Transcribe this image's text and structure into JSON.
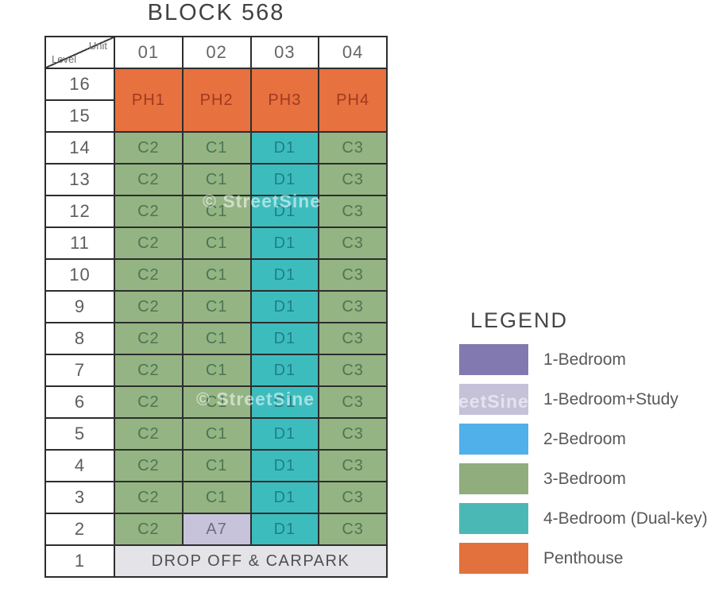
{
  "title": "BLOCK 568",
  "table": {
    "corner": {
      "top_label": "Unit",
      "side_label": "Level"
    },
    "columns": [
      "01",
      "02",
      "03",
      "04"
    ],
    "penthouse_band": {
      "levels": [
        "16",
        "15"
      ],
      "units": [
        {
          "label": "PH1",
          "type": "penthouse"
        },
        {
          "label": "PH2",
          "type": "penthouse"
        },
        {
          "label": "PH3",
          "type": "penthouse"
        },
        {
          "label": "PH4",
          "type": "penthouse"
        }
      ]
    },
    "rows": [
      {
        "level": "14",
        "units": [
          {
            "label": "C2",
            "type": "3br"
          },
          {
            "label": "C1",
            "type": "3br"
          },
          {
            "label": "D1",
            "type": "4br_dk"
          },
          {
            "label": "C3",
            "type": "3br"
          }
        ]
      },
      {
        "level": "13",
        "units": [
          {
            "label": "C2",
            "type": "3br"
          },
          {
            "label": "C1",
            "type": "3br"
          },
          {
            "label": "D1",
            "type": "4br_dk"
          },
          {
            "label": "C3",
            "type": "3br"
          }
        ]
      },
      {
        "level": "12",
        "units": [
          {
            "label": "C2",
            "type": "3br"
          },
          {
            "label": "C1",
            "type": "3br"
          },
          {
            "label": "D1",
            "type": "4br_dk"
          },
          {
            "label": "C3",
            "type": "3br"
          }
        ]
      },
      {
        "level": "11",
        "units": [
          {
            "label": "C2",
            "type": "3br"
          },
          {
            "label": "C1",
            "type": "3br"
          },
          {
            "label": "D1",
            "type": "4br_dk"
          },
          {
            "label": "C3",
            "type": "3br"
          }
        ]
      },
      {
        "level": "10",
        "units": [
          {
            "label": "C2",
            "type": "3br"
          },
          {
            "label": "C1",
            "type": "3br"
          },
          {
            "label": "D1",
            "type": "4br_dk"
          },
          {
            "label": "C3",
            "type": "3br"
          }
        ]
      },
      {
        "level": "9",
        "units": [
          {
            "label": "C2",
            "type": "3br"
          },
          {
            "label": "C1",
            "type": "3br"
          },
          {
            "label": "D1",
            "type": "4br_dk"
          },
          {
            "label": "C3",
            "type": "3br"
          }
        ]
      },
      {
        "level": "8",
        "units": [
          {
            "label": "C2",
            "type": "3br"
          },
          {
            "label": "C1",
            "type": "3br"
          },
          {
            "label": "D1",
            "type": "4br_dk"
          },
          {
            "label": "C3",
            "type": "3br"
          }
        ]
      },
      {
        "level": "7",
        "units": [
          {
            "label": "C2",
            "type": "3br"
          },
          {
            "label": "C1",
            "type": "3br"
          },
          {
            "label": "D1",
            "type": "4br_dk"
          },
          {
            "label": "C3",
            "type": "3br"
          }
        ]
      },
      {
        "level": "6",
        "units": [
          {
            "label": "C2",
            "type": "3br"
          },
          {
            "label": "C1",
            "type": "3br"
          },
          {
            "label": "D1",
            "type": "4br_dk"
          },
          {
            "label": "C3",
            "type": "3br"
          }
        ]
      },
      {
        "level": "5",
        "units": [
          {
            "label": "C2",
            "type": "3br"
          },
          {
            "label": "C1",
            "type": "3br"
          },
          {
            "label": "D1",
            "type": "4br_dk"
          },
          {
            "label": "C3",
            "type": "3br"
          }
        ]
      },
      {
        "level": "4",
        "units": [
          {
            "label": "C2",
            "type": "3br"
          },
          {
            "label": "C1",
            "type": "3br"
          },
          {
            "label": "D1",
            "type": "4br_dk"
          },
          {
            "label": "C3",
            "type": "3br"
          }
        ]
      },
      {
        "level": "3",
        "units": [
          {
            "label": "C2",
            "type": "3br"
          },
          {
            "label": "C1",
            "type": "3br"
          },
          {
            "label": "D1",
            "type": "4br_dk"
          },
          {
            "label": "C3",
            "type": "3br"
          }
        ]
      },
      {
        "level": "2",
        "units": [
          {
            "label": "C2",
            "type": "3br"
          },
          {
            "label": "A7",
            "type": "1br_study"
          },
          {
            "label": "D1",
            "type": "4br_dk"
          },
          {
            "label": "C3",
            "type": "3br"
          }
        ]
      }
    ],
    "ground_row": {
      "level": "1",
      "label": "DROP OFF & CARPARK",
      "type": "ground"
    }
  },
  "cell_styles": {
    "penthouse": {
      "bg": "#e7713f",
      "text": "#a03a20"
    },
    "3br": {
      "bg": "#94b483",
      "text": "#4c7652"
    },
    "4br_dk": {
      "bg": "#3dbcbe",
      "text": "#1d8086"
    },
    "1br_study": {
      "bg": "#c6c3da",
      "text": "#6f6b84"
    },
    "ground": {
      "bg": "#e4e4e8",
      "text": "#4f4f4f"
    }
  },
  "legend": {
    "title": "LEGEND",
    "items": [
      {
        "label": "1-Bedroom",
        "color": "#8279b0"
      },
      {
        "label": "1-Bedroom+Study",
        "color": "#c4c1d9"
      },
      {
        "label": "2-Bedroom",
        "color": "#4fb0ea"
      },
      {
        "label": "3-Bedroom",
        "color": "#8fad7d"
      },
      {
        "label": "4-Bedroom (Dual-key)",
        "color": "#4ab9b5"
      },
      {
        "label": "Penthouse",
        "color": "#e2713d"
      }
    ]
  },
  "watermarks": [
    {
      "text": "© StreetSine"
    },
    {
      "text": "© StreetSine"
    },
    {
      "text": "eetSine"
    }
  ]
}
